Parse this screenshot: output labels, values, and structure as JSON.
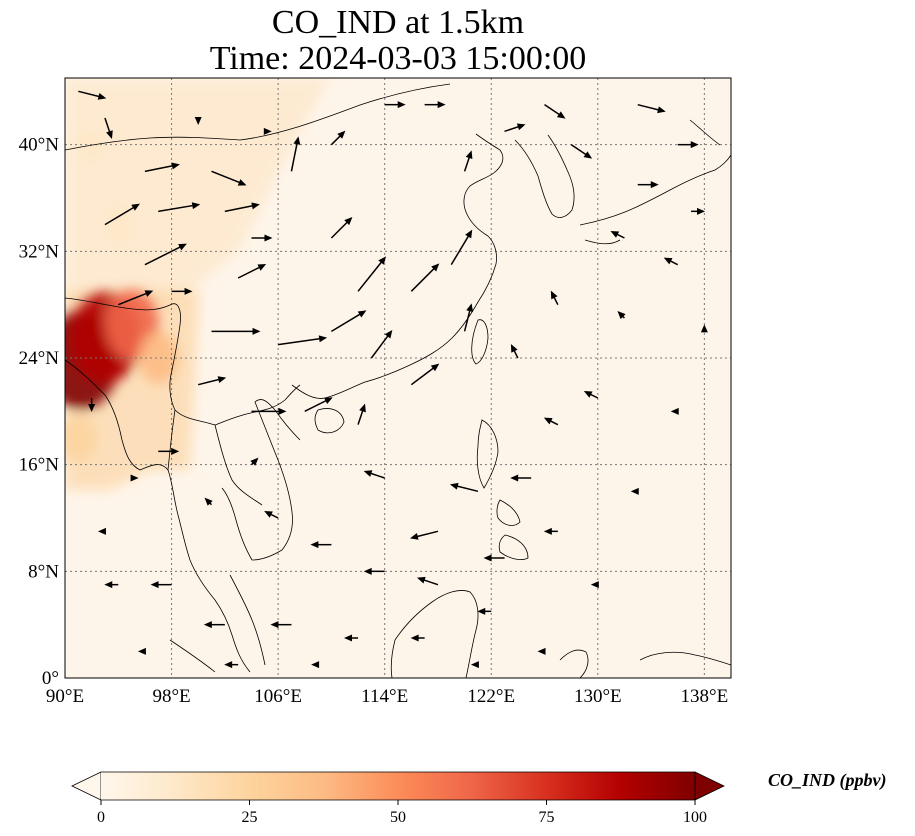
{
  "title": {
    "line1": "CO_IND at 1.5km",
    "line2": "Time: 2024-03-03 15:00:00"
  },
  "map": {
    "lon_range": [
      90,
      140
    ],
    "lat_range": [
      0,
      45
    ],
    "lon_ticks": [
      {
        "value": 90,
        "label": "90°E"
      },
      {
        "value": 98,
        "label": "98°E"
      },
      {
        "value": 106,
        "label": "106°E"
      },
      {
        "value": 114,
        "label": "114°E"
      },
      {
        "value": 122,
        "label": "122°E"
      },
      {
        "value": 130,
        "label": "130°E"
      },
      {
        "value": 138,
        "label": "138°E"
      }
    ],
    "lat_ticks": [
      {
        "value": 0,
        "label": "0°"
      },
      {
        "value": 8,
        "label": "8°N"
      },
      {
        "value": 16,
        "label": "16°N"
      },
      {
        "value": 24,
        "label": "24°N"
      },
      {
        "value": 32,
        "label": "32°N"
      },
      {
        "value": 40,
        "label": "40°N"
      }
    ],
    "gridlines": true,
    "colormap": "OrRd",
    "hotspots": [
      {
        "lon": 91.2,
        "lat": 23.8,
        "value": 100
      },
      {
        "lon": 93.0,
        "lat": 25.5,
        "value": 90
      },
      {
        "lon": 95.0,
        "lat": 26.5,
        "value": 60
      },
      {
        "lon": 97.0,
        "lat": 24.0,
        "value": 35
      },
      {
        "lon": 91.0,
        "lat": 18.0,
        "value": 30
      },
      {
        "lon": 94.0,
        "lat": 34.0,
        "value": 18
      },
      {
        "lon": 92.0,
        "lat": 40.0,
        "value": 12
      }
    ],
    "wind_vectors": [
      {
        "lon": 91,
        "lat": 44,
        "u": 4,
        "v": -1
      },
      {
        "lon": 93,
        "lat": 42,
        "u": 1,
        "v": -3
      },
      {
        "lon": 96,
        "lat": 38,
        "u": 5,
        "v": 1
      },
      {
        "lon": 97,
        "lat": 35,
        "u": 6,
        "v": 1
      },
      {
        "lon": 93,
        "lat": 34,
        "u": 5,
        "v": 3
      },
      {
        "lon": 96,
        "lat": 31,
        "u": 6,
        "v": 3
      },
      {
        "lon": 94,
        "lat": 28,
        "u": 5,
        "v": 2
      },
      {
        "lon": 101,
        "lat": 38,
        "u": 5,
        "v": -2
      },
      {
        "lon": 102,
        "lat": 35,
        "u": 5,
        "v": 1
      },
      {
        "lon": 104,
        "lat": 33,
        "u": 3,
        "v": 0
      },
      {
        "lon": 103,
        "lat": 30,
        "u": 4,
        "v": 2
      },
      {
        "lon": 101,
        "lat": 26,
        "u": 7,
        "v": 0
      },
      {
        "lon": 106,
        "lat": 25,
        "u": 7,
        "v": 1
      },
      {
        "lon": 110,
        "lat": 26,
        "u": 5,
        "v": 3
      },
      {
        "lon": 112,
        "lat": 29,
        "u": 4,
        "v": 5
      },
      {
        "lon": 116,
        "lat": 29,
        "u": 4,
        "v": 4
      },
      {
        "lon": 119,
        "lat": 31,
        "u": 3,
        "v": 5
      },
      {
        "lon": 110,
        "lat": 33,
        "u": 3,
        "v": 3
      },
      {
        "lon": 107,
        "lat": 38,
        "u": 1,
        "v": 5
      },
      {
        "lon": 110,
        "lat": 40,
        "u": 2,
        "v": 2
      },
      {
        "lon": 114,
        "lat": 43,
        "u": 3,
        "v": 0
      },
      {
        "lon": 117,
        "lat": 43,
        "u": 3,
        "v": 0
      },
      {
        "lon": 120,
        "lat": 38,
        "u": 1,
        "v": 3
      },
      {
        "lon": 123,
        "lat": 41,
        "u": 3,
        "v": 1
      },
      {
        "lon": 126,
        "lat": 43,
        "u": 3,
        "v": -2
      },
      {
        "lon": 128,
        "lat": 40,
        "u": 3,
        "v": -2
      },
      {
        "lon": 133,
        "lat": 43,
        "u": 4,
        "v": -1
      },
      {
        "lon": 136,
        "lat": 40,
        "u": 3,
        "v": 0
      },
      {
        "lon": 133,
        "lat": 37,
        "u": 3,
        "v": 0
      },
      {
        "lon": 137,
        "lat": 35,
        "u": 2,
        "v": 0
      },
      {
        "lon": 132,
        "lat": 33,
        "u": -2,
        "v": 1
      },
      {
        "lon": 136,
        "lat": 31,
        "u": -2,
        "v": 1
      },
      {
        "lon": 132,
        "lat": 27,
        "u": -1,
        "v": 1
      },
      {
        "lon": 127,
        "lat": 28,
        "u": -1,
        "v": 2
      },
      {
        "lon": 124,
        "lat": 24,
        "u": -1,
        "v": 2
      },
      {
        "lon": 127,
        "lat": 19,
        "u": -2,
        "v": 1
      },
      {
        "lon": 130,
        "lat": 21,
        "u": -2,
        "v": 1
      },
      {
        "lon": 125,
        "lat": 15,
        "u": -3,
        "v": 0
      },
      {
        "lon": 121,
        "lat": 14,
        "u": -4,
        "v": 1
      },
      {
        "lon": 118,
        "lat": 11,
        "u": -4,
        "v": -1
      },
      {
        "lon": 114,
        "lat": 15,
        "u": -3,
        "v": 1
      },
      {
        "lon": 112,
        "lat": 19,
        "u": 1,
        "v": 3
      },
      {
        "lon": 108,
        "lat": 20,
        "u": 4,
        "v": 2
      },
      {
        "lon": 104,
        "lat": 20,
        "u": 5,
        "v": 0
      },
      {
        "lon": 100,
        "lat": 22,
        "u": 4,
        "v": 1
      },
      {
        "lon": 97,
        "lat": 17,
        "u": 3,
        "v": 0
      },
      {
        "lon": 101,
        "lat": 13,
        "u": -1,
        "v": 1
      },
      {
        "lon": 106,
        "lat": 12,
        "u": -2,
        "v": 1
      },
      {
        "lon": 110,
        "lat": 10,
        "u": -3,
        "v": 0
      },
      {
        "lon": 114,
        "lat": 8,
        "u": -3,
        "v": 0
      },
      {
        "lon": 118,
        "lat": 7,
        "u": -3,
        "v": 1
      },
      {
        "lon": 123,
        "lat": 9,
        "u": -3,
        "v": 0
      },
      {
        "lon": 127,
        "lat": 11,
        "u": -2,
        "v": 0
      },
      {
        "lon": 130,
        "lat": 7,
        "u": -1,
        "v": 0
      },
      {
        "lon": 98,
        "lat": 7,
        "u": -3,
        "v": 0
      },
      {
        "lon": 94,
        "lat": 7,
        "u": -2,
        "v": 0
      },
      {
        "lon": 93,
        "lat": 11,
        "u": -1,
        "v": 0
      },
      {
        "lon": 102,
        "lat": 4,
        "u": -3,
        "v": 0
      },
      {
        "lon": 107,
        "lat": 4,
        "u": -3,
        "v": 0
      },
      {
        "lon": 112,
        "lat": 3,
        "u": -2,
        "v": 0
      },
      {
        "lon": 117,
        "lat": 3,
        "u": -2,
        "v": 0
      },
      {
        "lon": 122,
        "lat": 5,
        "u": -2,
        "v": 0
      },
      {
        "lon": 126,
        "lat": 2,
        "u": -1,
        "v": 0
      },
      {
        "lon": 96,
        "lat": 2,
        "u": -1,
        "v": 0
      },
      {
        "lon": 103,
        "lat": 1,
        "u": -2,
        "v": 0
      },
      {
        "lon": 109,
        "lat": 1,
        "u": -1,
        "v": 0
      },
      {
        "lon": 121,
        "lat": 1,
        "u": -1,
        "v": 0
      },
      {
        "lon": 133,
        "lat": 14,
        "u": -1,
        "v": 0
      },
      {
        "lon": 136,
        "lat": 20,
        "u": -1,
        "v": 0
      },
      {
        "lon": 138,
        "lat": 26,
        "u": 0,
        "v": 1
      },
      {
        "lon": 100,
        "lat": 42,
        "u": 0,
        "v": -1
      },
      {
        "lon": 105,
        "lat": 41,
        "u": 1,
        "v": 0
      },
      {
        "lon": 98,
        "lat": 29,
        "u": 3,
        "v": 0
      },
      {
        "lon": 92,
        "lat": 21,
        "u": 0,
        "v": -2
      },
      {
        "lon": 95,
        "lat": 15,
        "u": 1,
        "v": 0
      },
      {
        "lon": 104,
        "lat": 16,
        "u": 1,
        "v": 1
      },
      {
        "lon": 116,
        "lat": 22,
        "u": 4,
        "v": 3
      },
      {
        "lon": 113,
        "lat": 24,
        "u": 3,
        "v": 4
      },
      {
        "lon": 120,
        "lat": 26,
        "u": 1,
        "v": 4
      }
    ]
  },
  "colorbar": {
    "label": "CO_IND (ppbv)",
    "min": 0,
    "max": 100,
    "extend": "both",
    "ticks": [
      {
        "value": 0,
        "label": "0"
      },
      {
        "value": 25,
        "label": "25"
      },
      {
        "value": 50,
        "label": "50"
      },
      {
        "value": 75,
        "label": "75"
      },
      {
        "value": 100,
        "label": "100"
      }
    ]
  }
}
